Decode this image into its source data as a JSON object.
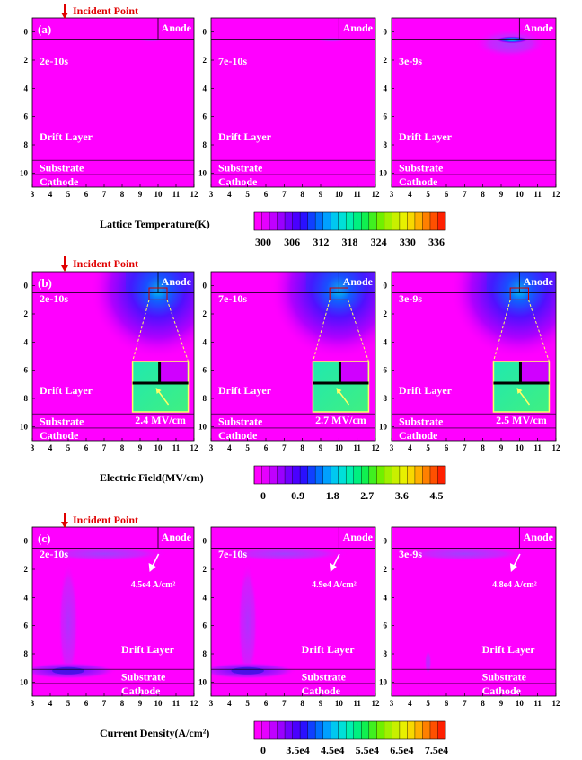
{
  "figure": {
    "rows": [
      {
        "panel_tag": "(a)",
        "incident_label": "Incident Point",
        "colorbar": {
          "title": "Lattice Temperature(K)",
          "ticks": [
            "300",
            "306",
            "312",
            "318",
            "324",
            "330",
            "336"
          ],
          "range": [
            300,
            336
          ]
        },
        "panels": [
          {
            "time": "2e-10s"
          },
          {
            "time": "7e-10s"
          },
          {
            "time": "3e-9s"
          }
        ]
      },
      {
        "panel_tag": "(b)",
        "incident_label": "Incident Point",
        "colorbar": {
          "title": "Electric Field(MV/cm)",
          "ticks": [
            "0",
            "0.9",
            "1.8",
            "2.7",
            "3.6",
            "4.5"
          ],
          "range": [
            0,
            4.5
          ]
        },
        "panels": [
          {
            "time": "2e-10s",
            "peak": "2.4 MV/cm"
          },
          {
            "time": "7e-10s",
            "peak": "2.7 MV/cm"
          },
          {
            "time": "3e-9s",
            "peak": "2.5 MV/cm"
          }
        ]
      },
      {
        "panel_tag": "(c)",
        "incident_label": "Incident Point",
        "colorbar": {
          "title": "Current Density(A/cm²)",
          "ticks": [
            "0",
            "3.5e4",
            "4.5e4",
            "5.5e4",
            "6.5e4",
            "7.5e4"
          ],
          "range": [
            0,
            75000
          ]
        },
        "panels": [
          {
            "time": "2e-10s",
            "peak": "4.5e4 A/cm²"
          },
          {
            "time": "7e-10s",
            "peak": "4.9e4 A/cm²"
          },
          {
            "time": "3e-9s",
            "peak": "4.8e4 A/cm²"
          }
        ]
      }
    ],
    "region_labels": {
      "anode": "Anode",
      "drift": "Drift Layer",
      "substrate": "Substrate",
      "cathode": "Cathode"
    },
    "axes": {
      "x_ticks": [
        "3",
        "4",
        "5",
        "6",
        "7",
        "8",
        "9",
        "10",
        "11",
        "12"
      ],
      "y_ticks": [
        "0",
        "2",
        "4",
        "6",
        "8",
        "10"
      ]
    },
    "colors": {
      "background": "#ff00ff",
      "arrow": "#e00000",
      "incident_text": "#e00000",
      "callout": "#ffff66"
    },
    "colorbar_palette": [
      "#ff00ff",
      "#e600ff",
      "#c000ff",
      "#9a00ff",
      "#7000ff",
      "#4a00ff",
      "#2a10ff",
      "#1040ff",
      "#0070ff",
      "#00a0ff",
      "#00c8f0",
      "#00e0d8",
      "#00f0b0",
      "#00f080",
      "#10f050",
      "#40f020",
      "#70f000",
      "#a0f000",
      "#c8f000",
      "#e8f000",
      "#f8d800",
      "#ffb000",
      "#ff8000",
      "#ff5000",
      "#ff2000"
    ]
  },
  "chart_data": [
    {
      "type": "heatmap",
      "panel": "(a)",
      "title": "",
      "colorbar_label": "Lattice Temperature(K)",
      "colorbar_range": [
        300,
        336
      ],
      "xlim": [
        3,
        12
      ],
      "ylim": [
        11,
        -1
      ],
      "times": [
        "2e-10s",
        "7e-10s",
        "3e-9s"
      ],
      "peak_location": {
        "x": 10,
        "y": 0.6
      }
    },
    {
      "type": "heatmap",
      "panel": "(b)",
      "title": "",
      "colorbar_label": "Electric Field(MV/cm)",
      "colorbar_range": [
        0,
        4.5
      ],
      "xlim": [
        3,
        12
      ],
      "ylim": [
        11,
        -1
      ],
      "times": [
        "2e-10s",
        "7e-10s",
        "3e-9s"
      ],
      "peak_values": [
        2.4,
        2.7,
        2.5
      ],
      "peak_unit": "MV/cm",
      "peak_location": {
        "x": 10,
        "y": 0.6
      }
    },
    {
      "type": "heatmap",
      "panel": "(c)",
      "title": "",
      "colorbar_label": "Current Density(A/cm²)",
      "colorbar_range": [
        0,
        75000
      ],
      "xlim": [
        3,
        12
      ],
      "ylim": [
        11,
        -1
      ],
      "times": [
        "2e-10s",
        "7e-10s",
        "3e-9s"
      ],
      "peak_values": [
        45000,
        49000,
        48000
      ],
      "peak_unit": "A/cm²"
    }
  ]
}
